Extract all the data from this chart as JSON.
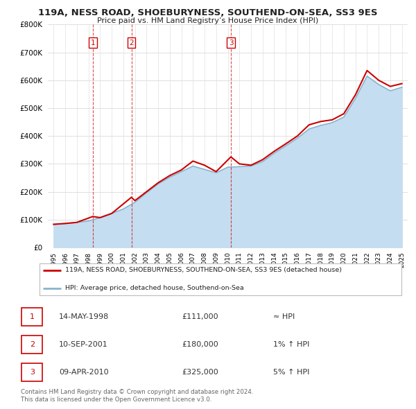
{
  "title": "119A, NESS ROAD, SHOEBURYNESS, SOUTHEND-ON-SEA, SS3 9ES",
  "subtitle": "Price paid vs. HM Land Registry’s House Price Index (HPI)",
  "ylim": [
    0,
    800000
  ],
  "yticks": [
    0,
    100000,
    200000,
    300000,
    400000,
    500000,
    600000,
    700000,
    800000
  ],
  "ytick_labels": [
    "£0",
    "£100K",
    "£200K",
    "£300K",
    "£400K",
    "£500K",
    "£600K",
    "£700K",
    "£800K"
  ],
  "xlim_start": 1994.5,
  "xlim_end": 2025.5,
  "title_color": "#222222",
  "red_color": "#cc0000",
  "blue_color": "#c5ddf0",
  "blue_line_color": "#88b4cc",
  "grid_color": "#e0e0e0",
  "transactions": [
    {
      "num": 1,
      "date": "14-MAY-1998",
      "price": 111000,
      "year": 1998.37,
      "hpi_rel": "≈ HPI"
    },
    {
      "num": 2,
      "date": "10-SEP-2001",
      "price": 180000,
      "year": 2001.7,
      "hpi_rel": "1% ↑ HPI"
    },
    {
      "num": 3,
      "date": "09-APR-2010",
      "price": 325000,
      "year": 2010.27,
      "hpi_rel": "5% ↑ HPI"
    }
  ],
  "legend_red": "119A, NESS ROAD, SHOEBURYNESS, SOUTHEND-ON-SEA, SS3 9ES (detached house)",
  "legend_blue": "HPI: Average price, detached house, Southend-on-Sea",
  "footer1": "Contains HM Land Registry data © Crown copyright and database right 2024.",
  "footer2": "This data is licensed under the Open Government Licence v3.0.",
  "hpi_years": [
    1995,
    1996,
    1997,
    1998,
    1999,
    2000,
    2001,
    2002,
    2003,
    2004,
    2005,
    2006,
    2007,
    2008,
    2009,
    2010,
    2011,
    2012,
    2013,
    2014,
    2015,
    2016,
    2017,
    2018,
    2019,
    2020,
    2021,
    2022,
    2023,
    2024,
    2025
  ],
  "hpi_values": [
    83000,
    86000,
    90000,
    95000,
    107000,
    122000,
    138000,
    162000,
    196000,
    228000,
    252000,
    272000,
    292000,
    280000,
    268000,
    288000,
    290000,
    292000,
    308000,
    338000,
    365000,
    392000,
    425000,
    438000,
    448000,
    468000,
    535000,
    615000,
    585000,
    562000,
    575000
  ],
  "red_years": [
    1995,
    1996,
    1997,
    1998.37,
    1999,
    2000,
    2001.7,
    2002,
    2003,
    2004,
    2005,
    2006,
    2007,
    2008,
    2009,
    2010.27,
    2011,
    2012,
    2013,
    2014,
    2015,
    2016,
    2017,
    2018,
    2019,
    2020,
    2021,
    2022,
    2023,
    2024,
    2025
  ],
  "red_values": [
    83000,
    86000,
    90000,
    111000,
    107000,
    122000,
    180000,
    168000,
    200000,
    232000,
    258000,
    278000,
    310000,
    295000,
    272000,
    325000,
    300000,
    295000,
    315000,
    345000,
    372000,
    400000,
    440000,
    452000,
    458000,
    480000,
    548000,
    635000,
    600000,
    578000,
    588000
  ]
}
